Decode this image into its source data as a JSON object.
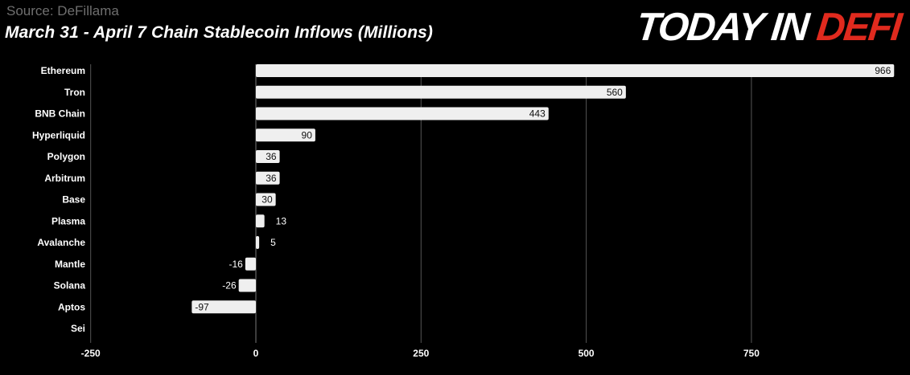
{
  "header": {
    "source": "Source: DeFillama",
    "title": "March 31 - April 7 Chain Stablecoin Inflows (Millions)",
    "logo_part1": "TODAY IN ",
    "logo_part2": "DEFI"
  },
  "colors": {
    "background": "#000000",
    "bar": "#efefef",
    "grid": "#555555",
    "text": "#ffffff",
    "logo_accent": "#e02a1e"
  },
  "chart_data": {
    "type": "bar",
    "orientation": "horizontal",
    "title": "March 31 - April 7 Chain Stablecoin Inflows (Millions)",
    "categories": [
      "Ethereum",
      "Tron",
      "BNB Chain",
      "Hyperliquid",
      "Polygon",
      "Arbitrum",
      "Base",
      "Plasma",
      "Avalanche",
      "Mantle",
      "Solana",
      "Aptos",
      "Sei"
    ],
    "values": [
      966,
      560,
      443,
      90,
      36,
      36,
      30,
      13,
      5,
      -16,
      -26,
      -97,
      null
    ],
    "value_labels": [
      "966",
      "560",
      "443",
      "90",
      "36",
      "36",
      "30",
      "13",
      "5",
      "-16",
      "-26",
      "-97",
      ""
    ],
    "xlim": [
      -250,
      975
    ],
    "xticks": [
      -250,
      0,
      250,
      500,
      750
    ],
    "grid": true
  }
}
